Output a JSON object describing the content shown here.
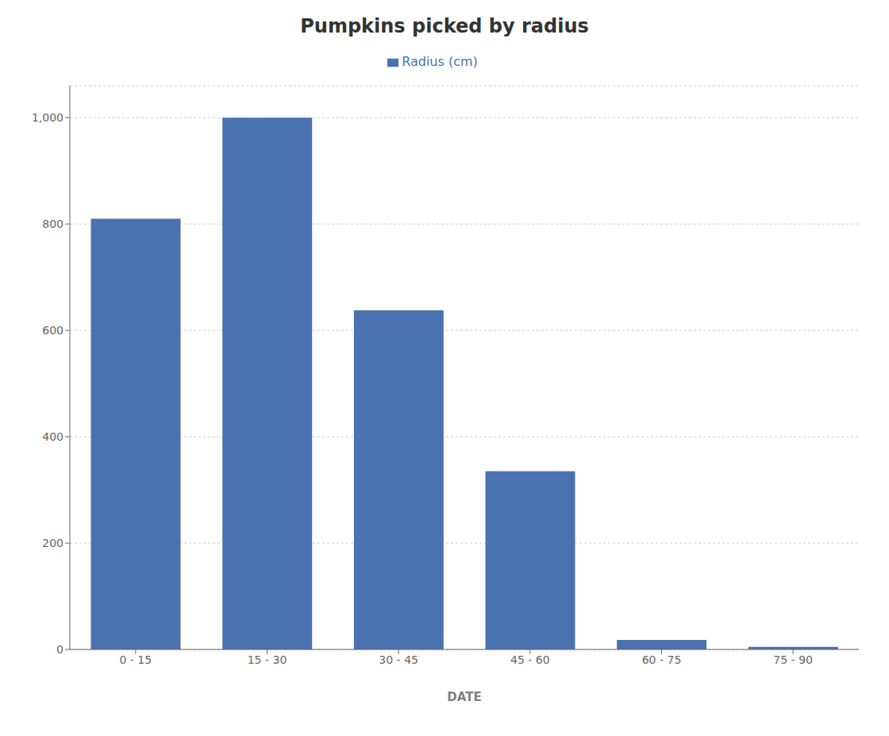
{
  "chart_data": {
    "type": "bar",
    "title": "Pumpkins picked by radius",
    "xlabel": "DATE",
    "categories": [
      "0 - 15",
      "15 - 30",
      "30 - 45",
      "45 - 60",
      "60 - 75",
      "75 - 90"
    ],
    "series": [
      {
        "name": "Radius (cm)",
        "color": "#4a72b0",
        "values": [
          810,
          1000,
          638,
          335,
          18,
          5
        ]
      }
    ],
    "ylim": [
      0,
      1060
    ],
    "yticks": [
      0,
      200,
      400,
      600,
      800,
      {
        "value": 1000,
        "label": "1,000"
      }
    ],
    "grid": true,
    "legend": "top"
  }
}
